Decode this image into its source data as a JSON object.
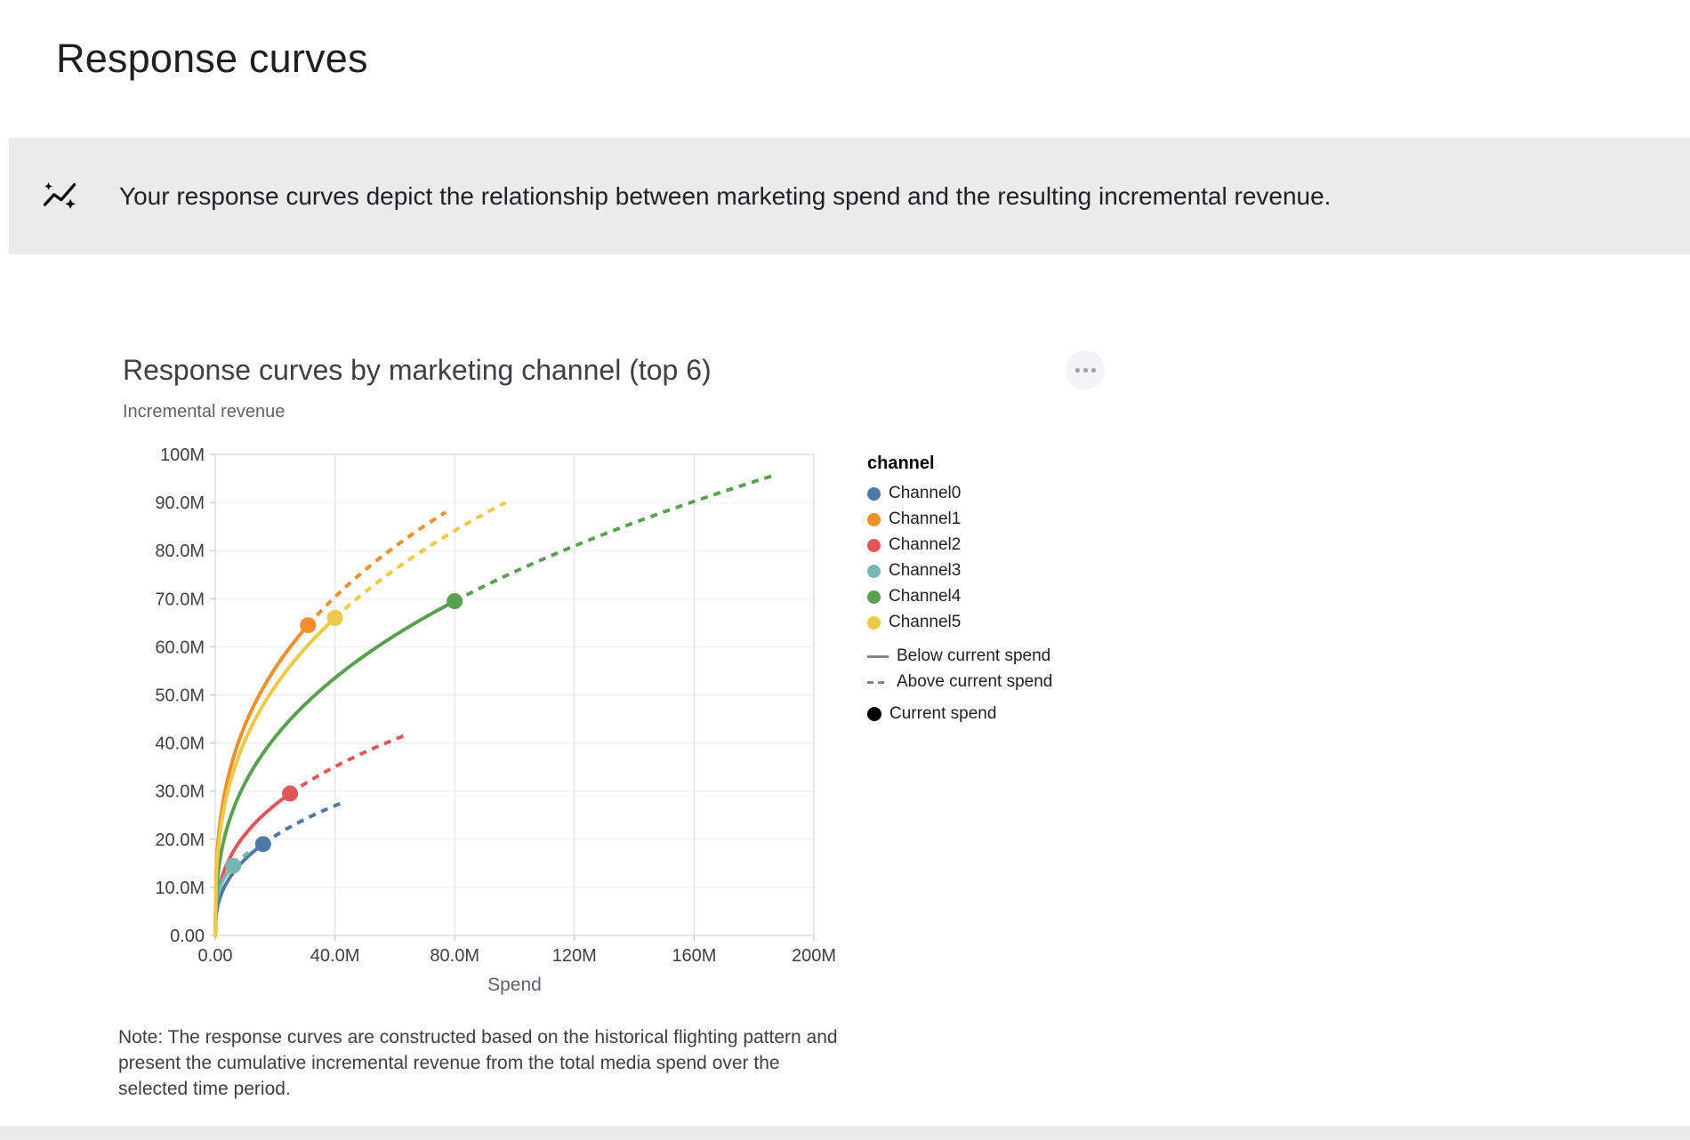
{
  "page": {
    "title": "Response curves",
    "banner": {
      "icon": "insights-icon",
      "text": "Your response curves depict the relationship between marketing spend and the resulting incremental revenue."
    },
    "note": "Note: The response curves are constructed based on the historical flighting pattern and present the cumulative incremental revenue from the total media spend over the selected time period.",
    "more_options_icon": "more-options-icon"
  },
  "chart_data": {
    "type": "line",
    "title": "Response curves by marketing channel (top 6)",
    "xlabel": "Spend",
    "ylabel": "Incremental revenue",
    "units": "axis values in millions",
    "xlim": [
      0,
      200
    ],
    "ylim": [
      0,
      100
    ],
    "grid": true,
    "x_ticks": [
      {
        "value": 0,
        "label": "0.00"
      },
      {
        "value": 40,
        "label": "40.0M"
      },
      {
        "value": 80,
        "label": "80.0M"
      },
      {
        "value": 120,
        "label": "120M"
      },
      {
        "value": 160,
        "label": "160M"
      },
      {
        "value": 200,
        "label": "200M"
      }
    ],
    "y_ticks": [
      {
        "value": 0,
        "label": "0.00"
      },
      {
        "value": 10,
        "label": "10.0M"
      },
      {
        "value": 20,
        "label": "20.0M"
      },
      {
        "value": 30,
        "label": "30.0M"
      },
      {
        "value": 40,
        "label": "40.0M"
      },
      {
        "value": 50,
        "label": "50.0M"
      },
      {
        "value": 60,
        "label": "60.0M"
      },
      {
        "value": 70,
        "label": "70.0M"
      },
      {
        "value": 80,
        "label": "80.0M"
      },
      {
        "value": 90,
        "label": "90.0M"
      },
      {
        "value": 100,
        "label": "100M"
      }
    ],
    "legend": {
      "title": "channel",
      "position": "right",
      "line_styles": [
        {
          "label": "Below current spend",
          "style": "solid"
        },
        {
          "label": "Above current spend",
          "style": "dashed"
        }
      ],
      "marker": {
        "label": "Current spend",
        "color": "#000000"
      }
    },
    "series": [
      {
        "name": "Channel0",
        "color": "#4e79a7",
        "current_spend_m": 16,
        "current_revenue_m": 19,
        "max_spend_m": 42,
        "max_revenue_m": 27.5
      },
      {
        "name": "Channel1",
        "color": "#f28e2b",
        "current_spend_m": 31,
        "current_revenue_m": 64.5,
        "max_spend_m": 77,
        "max_revenue_m": 88
      },
      {
        "name": "Channel2",
        "color": "#e15759",
        "current_spend_m": 25,
        "current_revenue_m": 29.5,
        "max_spend_m": 63,
        "max_revenue_m": 41.5
      },
      {
        "name": "Channel3",
        "color": "#76b7b2",
        "current_spend_m": 6,
        "current_revenue_m": 14.5,
        "max_spend_m": 13,
        "max_revenue_m": 18
      },
      {
        "name": "Channel4",
        "color": "#59a14f",
        "current_spend_m": 80,
        "current_revenue_m": 69.5,
        "max_spend_m": 186,
        "max_revenue_m": 95.5
      },
      {
        "name": "Channel5",
        "color": "#edc948",
        "current_spend_m": 40,
        "current_revenue_m": 66,
        "max_spend_m": 97,
        "max_revenue_m": 90
      }
    ]
  }
}
